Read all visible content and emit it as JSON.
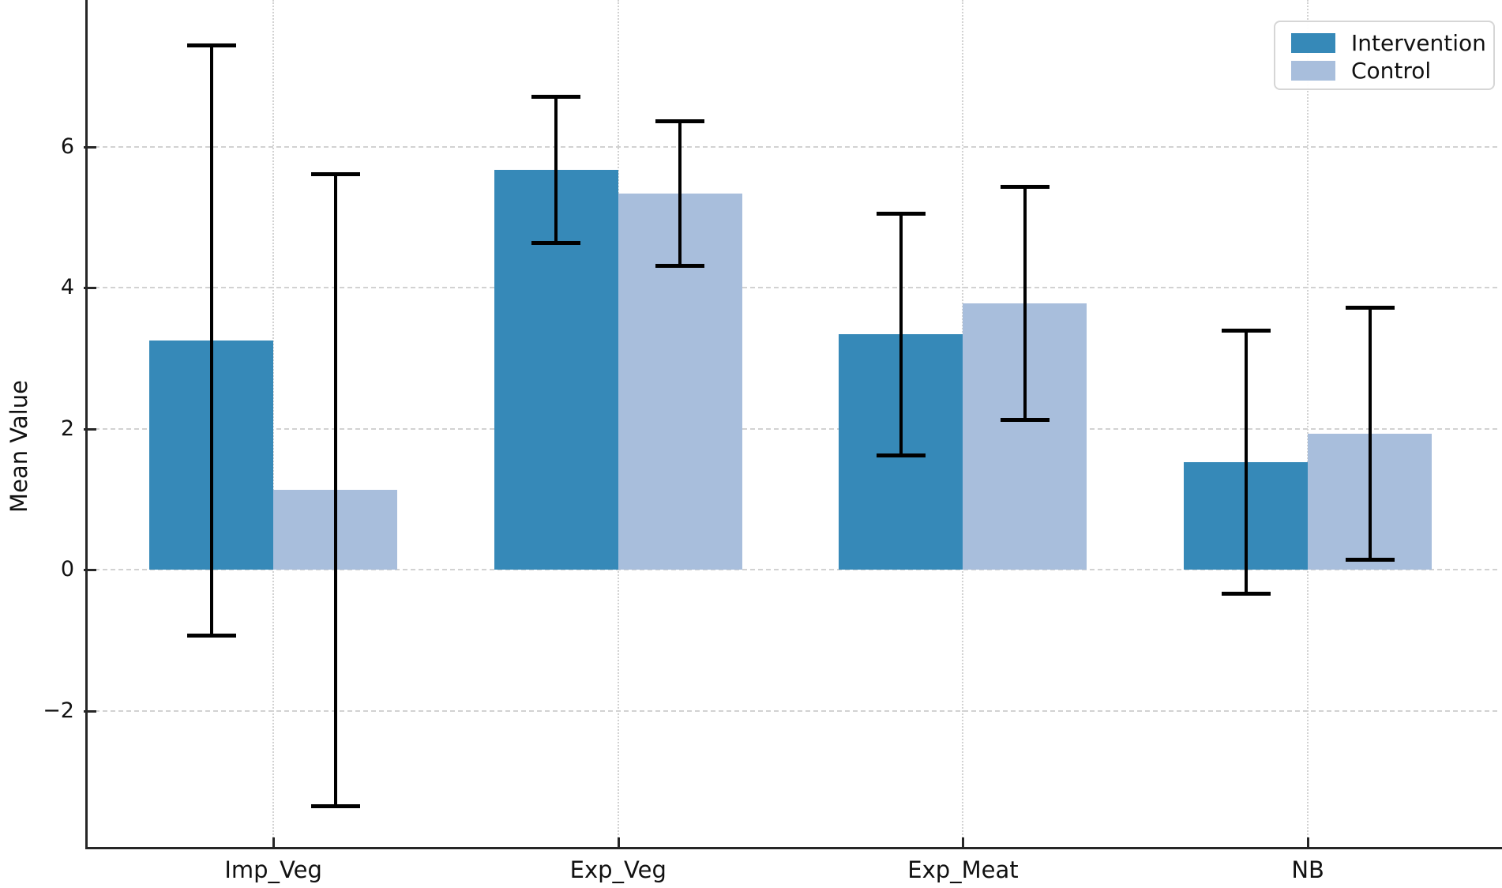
{
  "chart_data": {
    "type": "bar",
    "title": "",
    "xlabel": "",
    "ylabel": "Mean Value",
    "categories": [
      "Imp_Veg",
      "Exp_Veg",
      "Exp_Meat",
      "NB"
    ],
    "series": [
      {
        "name": "Intervention",
        "color": "#3689b8",
        "values": [
          3.25,
          5.67,
          3.34,
          1.53
        ],
        "errors": [
          4.19,
          1.04,
          1.72,
          1.87
        ]
      },
      {
        "name": "Control",
        "color": "#a8bedc",
        "values": [
          1.13,
          5.34,
          3.78,
          1.93
        ],
        "errors": [
          4.49,
          1.03,
          1.66,
          1.79
        ]
      }
    ],
    "error_bar_color": "#000000",
    "axis_color": "#262626",
    "ylim": [
      -3.93,
      8.08
    ],
    "yticks": [
      {
        "value": -2,
        "label": "−2"
      },
      {
        "value": 0,
        "label": "0"
      },
      {
        "value": 2,
        "label": "2"
      },
      {
        "value": 4,
        "label": "4"
      },
      {
        "value": 6,
        "label": "6"
      }
    ],
    "grid": {
      "horizontal_style": "dashed",
      "vertical_style": "dotted",
      "color": "#d2d2d2"
    },
    "legend": {
      "position": "upper right",
      "entries": [
        "Intervention",
        "Control"
      ]
    }
  }
}
